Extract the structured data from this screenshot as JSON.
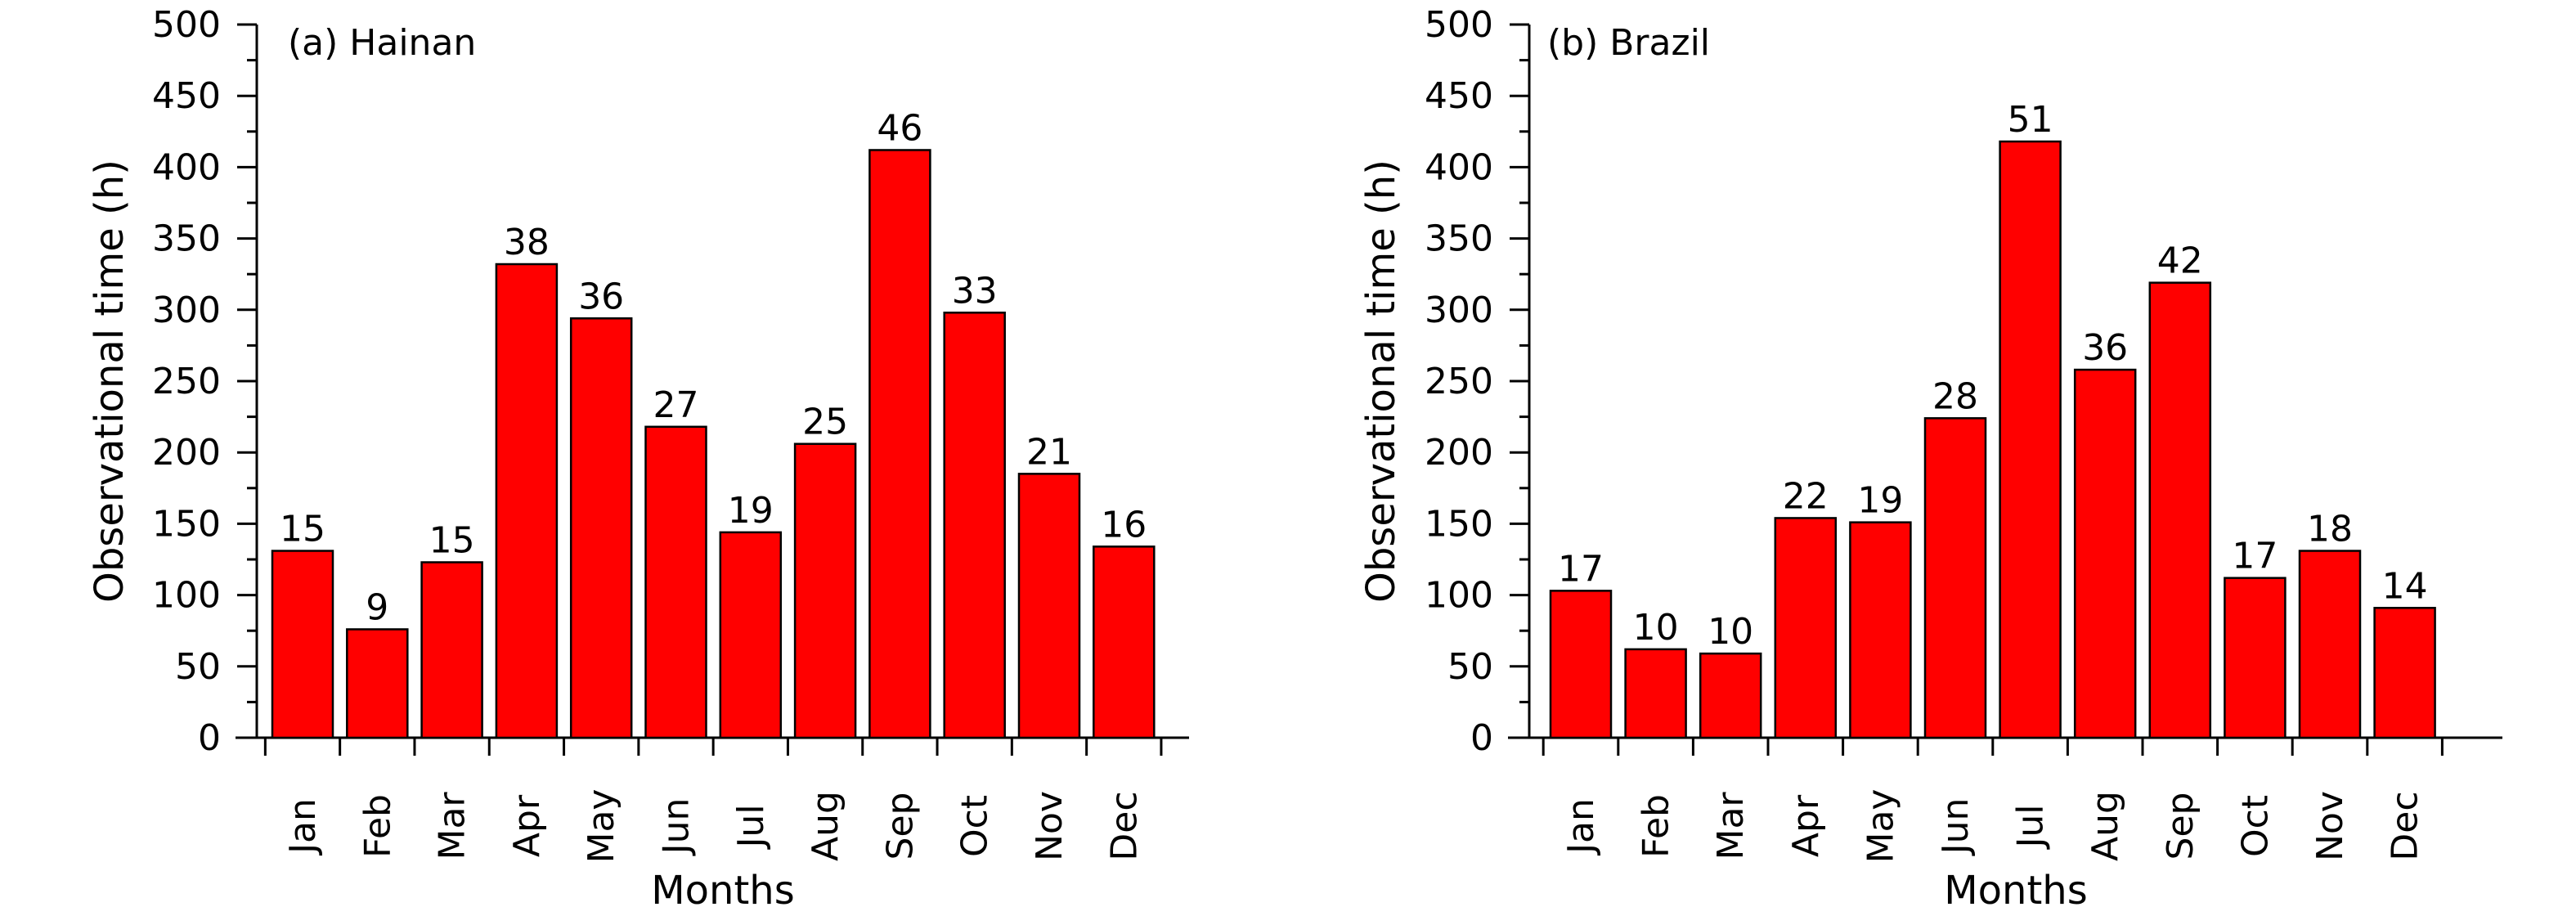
{
  "chart_data": [
    {
      "type": "bar",
      "title": "(a) Hainan",
      "xlabel": "Months",
      "ylabel": "Observational time (h)",
      "ylim": [
        0,
        500
      ],
      "yticks": [
        "0",
        "50",
        "100",
        "150",
        "200",
        "250",
        "300",
        "350",
        "400",
        "450",
        "500"
      ],
      "categories": [
        "Jan",
        "Feb",
        "Mar",
        "Apr",
        "May",
        "Jun",
        "Jul",
        "Aug",
        "Sep",
        "Oct",
        "Nov",
        "Dec"
      ],
      "values": [
        131,
        76,
        123,
        332,
        294,
        218,
        144,
        206,
        412,
        298,
        185,
        134
      ],
      "data_labels": [
        "15",
        "9",
        "15",
        "38",
        "36",
        "27",
        "19",
        "25",
        "46",
        "33",
        "21",
        "16"
      ],
      "grid": false,
      "bar_color": "#ff0000"
    },
    {
      "type": "bar",
      "title": "(b) Brazil",
      "xlabel": "Months",
      "ylabel": "Observational time (h)",
      "ylim": [
        0,
        500
      ],
      "yticks": [
        "0",
        "50",
        "100",
        "150",
        "200",
        "250",
        "300",
        "350",
        "400",
        "450",
        "500"
      ],
      "categories": [
        "Jan",
        "Feb",
        "Mar",
        "Apr",
        "May",
        "Jun",
        "Jul",
        "Aug",
        "Sep",
        "Oct",
        "Nov",
        "Dec"
      ],
      "values": [
        103,
        62,
        59,
        154,
        151,
        224,
        418,
        258,
        319,
        112,
        131,
        91
      ],
      "data_labels": [
        "17",
        "10",
        "10",
        "22",
        "19",
        "28",
        "51",
        "36",
        "42",
        "17",
        "18",
        "14"
      ],
      "grid": false,
      "bar_color": "#ff0000"
    }
  ]
}
